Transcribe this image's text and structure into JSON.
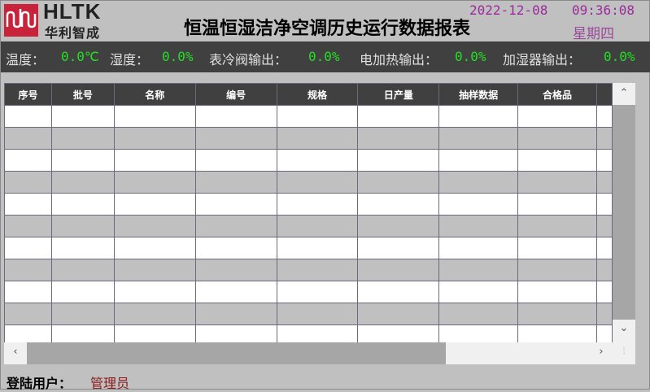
{
  "logo": {
    "text": "HLTK",
    "sub": "华利智成",
    "color": "#c8233a"
  },
  "header": {
    "title": "恒温恒湿洁净空调历史运行数据报表",
    "date": "2022-12-08",
    "time": "09:36:08",
    "weekday": "星期四"
  },
  "status": [
    {
      "label": "温度：",
      "value": "0.0℃"
    },
    {
      "label": "湿度：",
      "value": "0.0%"
    },
    {
      "label": "表冷阀输出：",
      "value": "0.0%"
    },
    {
      "label": "电加热输出：",
      "value": "0.0%"
    },
    {
      "label": "加湿器输出：",
      "value": "0.0%"
    }
  ],
  "table": {
    "columns": [
      "序号",
      "批号",
      "名称",
      "编号",
      "规格",
      "日产量",
      "抽样数据",
      "合格品",
      ""
    ],
    "rows": []
  },
  "footer": {
    "label": "登陆用户：",
    "user": "管理员"
  }
}
